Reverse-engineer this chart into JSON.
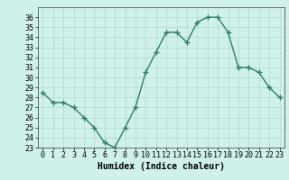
{
  "x": [
    0,
    1,
    2,
    3,
    4,
    5,
    6,
    7,
    8,
    9,
    10,
    11,
    12,
    13,
    14,
    15,
    16,
    17,
    18,
    19,
    20,
    21,
    22,
    23
  ],
  "y": [
    28.5,
    27.5,
    27.5,
    27.0,
    26.0,
    25.0,
    23.5,
    23.0,
    25.0,
    27.0,
    30.5,
    32.5,
    34.5,
    34.5,
    33.5,
    35.5,
    36.0,
    36.0,
    34.5,
    31.0,
    31.0,
    30.5,
    29.0,
    28.0
  ],
  "line_color": "#2e7d6e",
  "marker": "+",
  "markersize": 4,
  "linewidth": 1.0,
  "bg_color": "#cff0eb",
  "grid_color": "#aed8d2",
  "xlabel": "Humidex (Indice chaleur)",
  "ylim": [
    23,
    37
  ],
  "xlim": [
    -0.5,
    23.5
  ],
  "yticks": [
    23,
    24,
    25,
    26,
    27,
    28,
    29,
    30,
    31,
    32,
    33,
    34,
    35,
    36
  ],
  "xticks": [
    0,
    1,
    2,
    3,
    4,
    5,
    6,
    7,
    8,
    9,
    10,
    11,
    12,
    13,
    14,
    15,
    16,
    17,
    18,
    19,
    20,
    21,
    22,
    23
  ],
  "xlabel_fontsize": 7,
  "tick_fontsize": 6
}
